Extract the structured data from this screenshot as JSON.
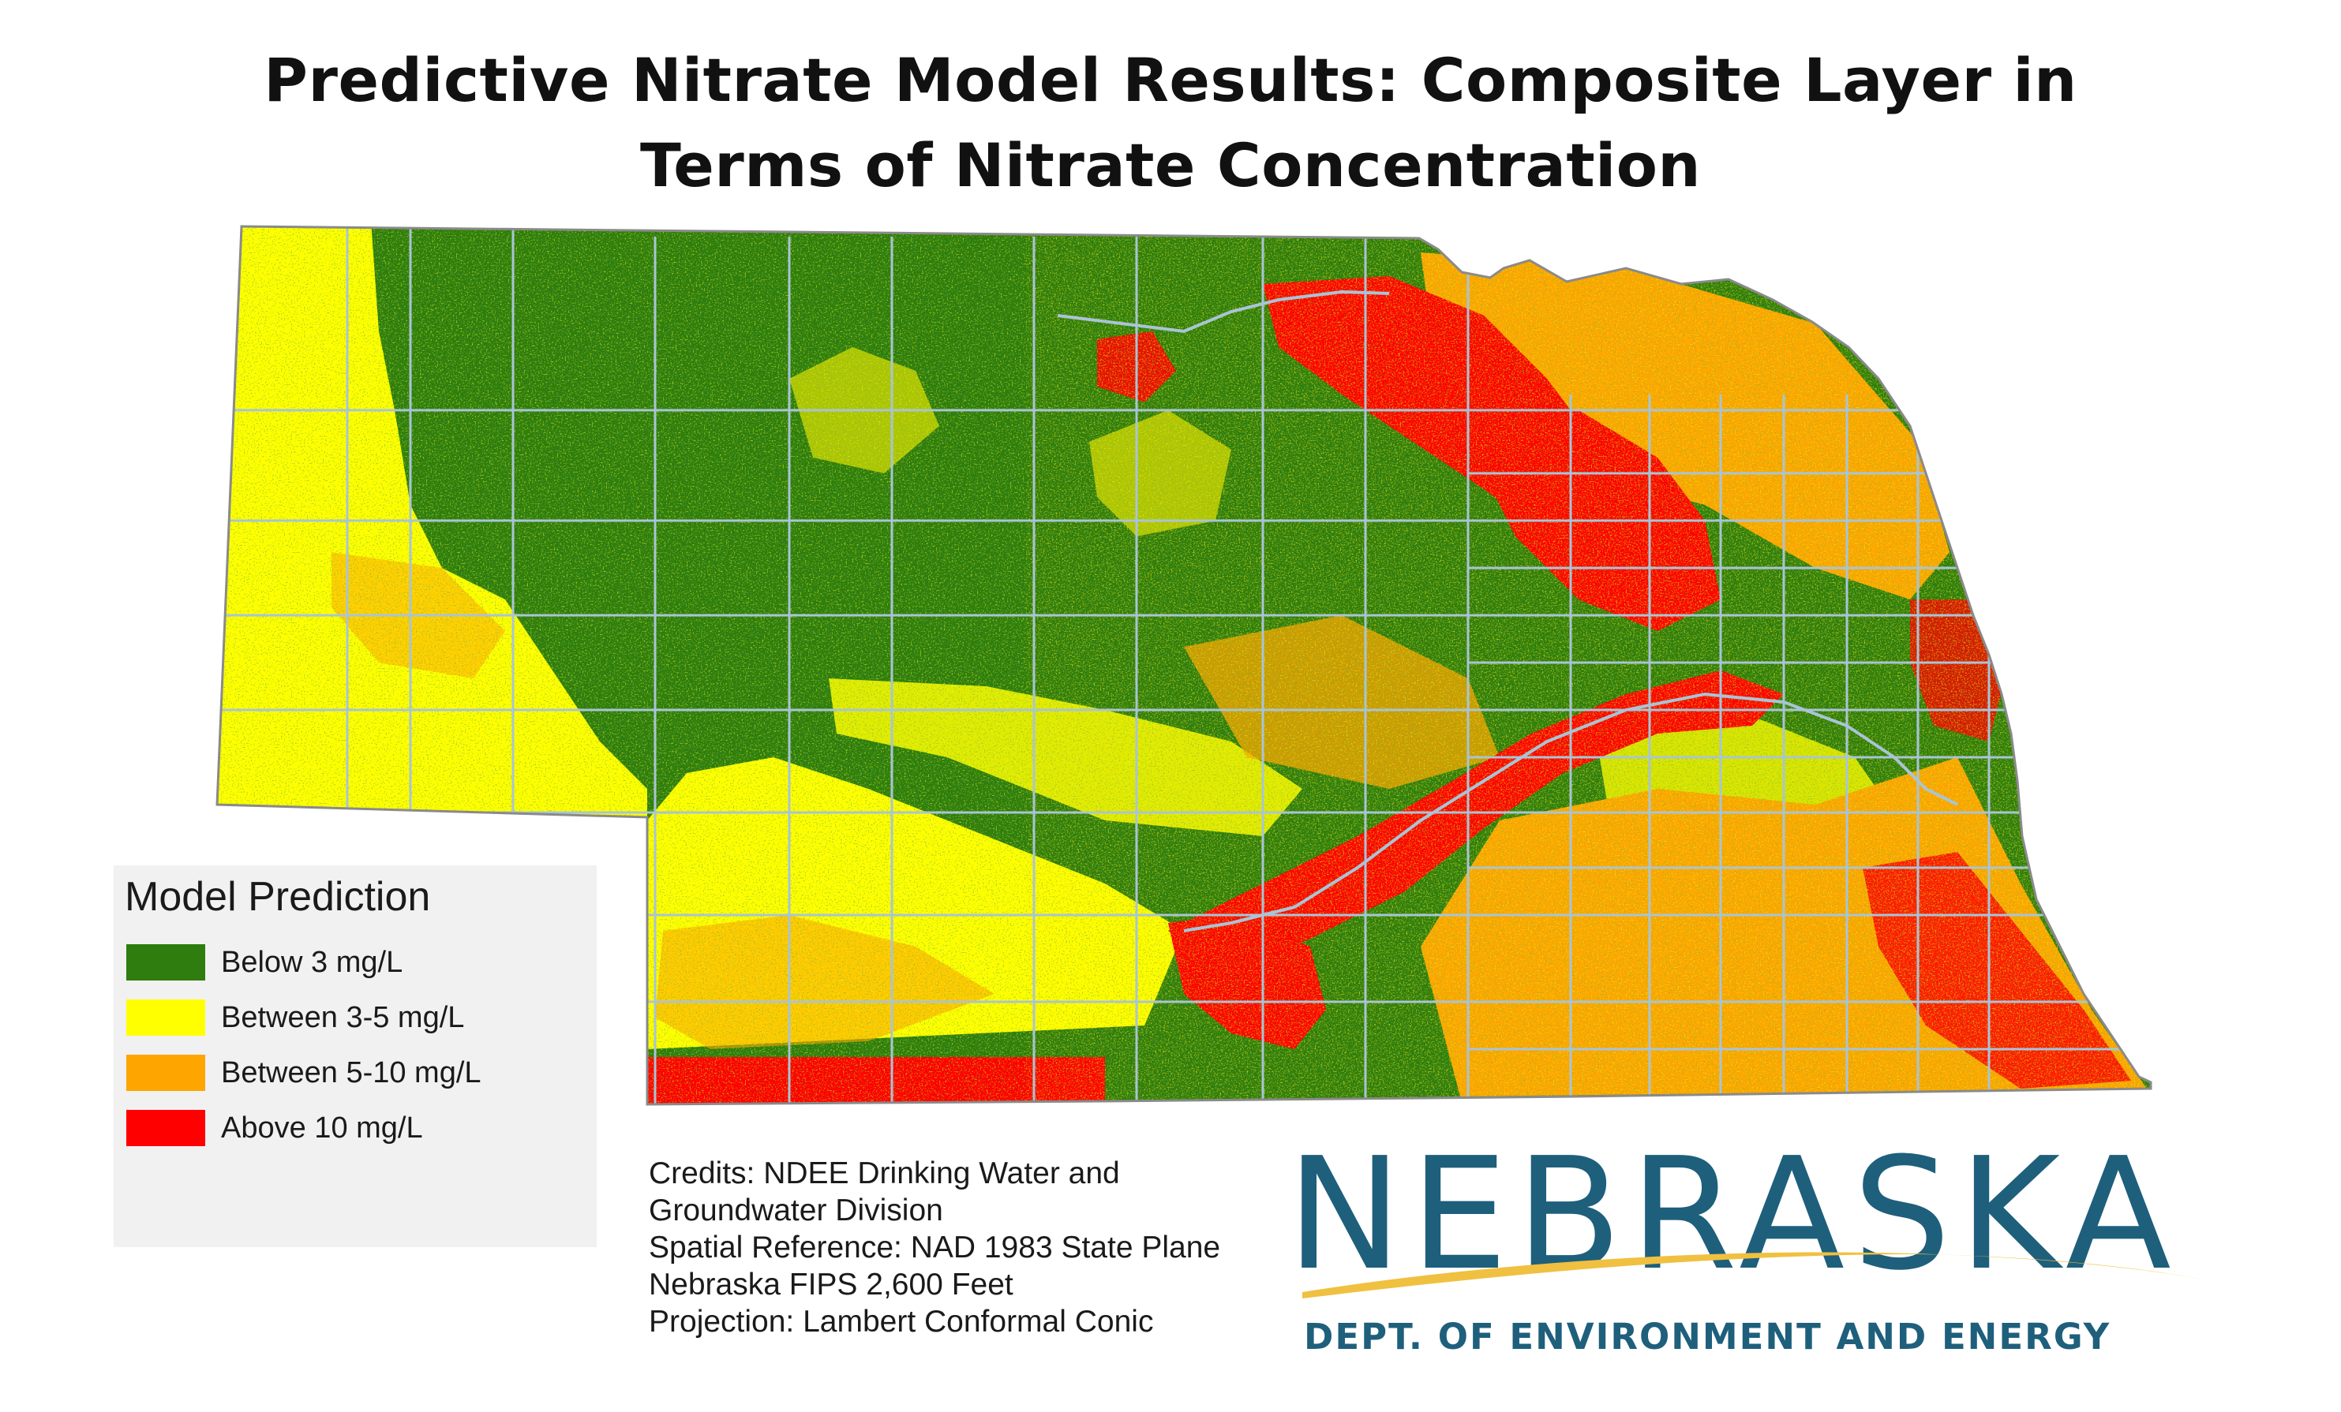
{
  "title": {
    "line1": "Predictive Nitrate Model Results: Composite Layer in",
    "line2": "Terms of Nitrate Concentration"
  },
  "legend": {
    "title": "Model Prediction",
    "items": [
      {
        "label": "Below 3 mg/L",
        "color": "#2e7d0e"
      },
      {
        "label": "Between 3-5 mg/L",
        "color": "#ffff00"
      },
      {
        "label": "Between 5-10 mg/L",
        "color": "#ffa500"
      },
      {
        "label": "Above 10 mg/L",
        "color": "#ff0000"
      }
    ]
  },
  "credits": [
    "Credits: NDEE Drinking Water and",
    "Groundwater Division",
    "Spatial Reference: NAD 1983 State Plane",
    "Nebraska FIPS 2,600 Feet",
    "Projection: Lambert Conformal Conic"
  ],
  "logo": {
    "wordmark": "NEBRASKA",
    "subtitle": "DEPT. OF ENVIRONMENT AND ENERGY",
    "text_color": "#1e5f7c",
    "swoosh_color": "#f0c040"
  },
  "map": {
    "region": "Nebraska",
    "boundary_color": "#a9c4d6"
  }
}
